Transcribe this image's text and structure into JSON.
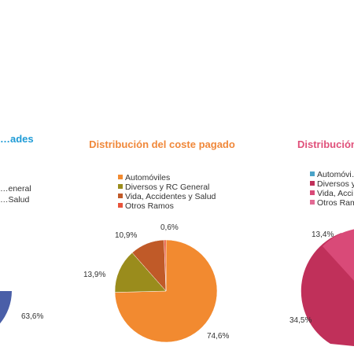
{
  "chart_data": [
    {
      "type": "pie",
      "title": "…ades",
      "title_color": "#1e9bd6",
      "legend": [
        "…eneral",
        "…Salud"
      ],
      "values": [
        63.6
      ],
      "labels": [
        "63,6%"
      ],
      "colors": [
        "#4a5fa8"
      ],
      "cropped": "left"
    },
    {
      "type": "pie",
      "title": "Distribución del coste pagado",
      "title_color": "#f0883a",
      "legend": [
        "Automóviles",
        "Diversos y RC General",
        "Vida, Accidentes y Salud",
        "Otros Ramos"
      ],
      "colors": [
        "#f28a30",
        "#9a8c1c",
        "#c05a28",
        "#e8533a"
      ],
      "values": [
        74.6,
        13.9,
        10.9,
        0.6
      ],
      "labels": [
        "74,6%",
        "13,9%",
        "10,9%",
        "0,6%"
      ]
    },
    {
      "type": "pie",
      "title": "Distribución…",
      "title_color": "#e0507a",
      "legend": [
        "Automóvi…",
        "Diversos y…",
        "Vida, Acci…",
        "Otros Ram…"
      ],
      "colors": [
        "#4aa3c8",
        "#c0305a",
        "#d94a78",
        "#e26a94"
      ],
      "values": [
        34.5,
        13.4
      ],
      "labels": [
        "34,5%",
        "13,4%"
      ],
      "cropped": "right"
    }
  ]
}
